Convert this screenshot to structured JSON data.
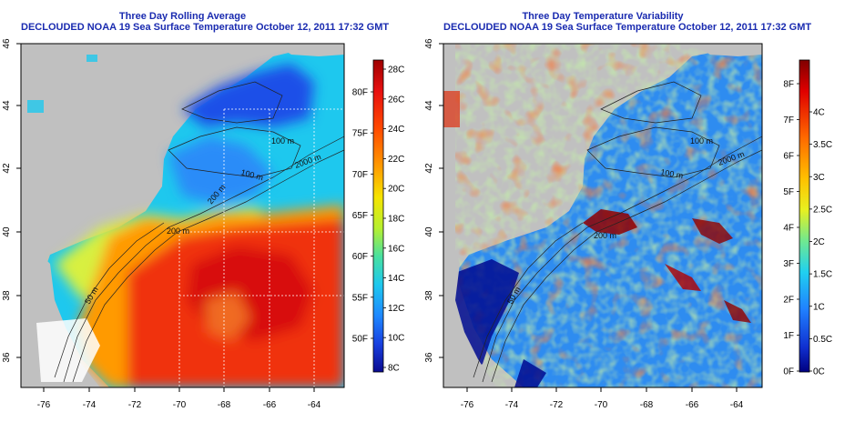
{
  "panels": [
    {
      "title": "Three Day Rolling Average",
      "subtitle": "DECLOUDED NOAA 19 Sea Surface Temperature October 12, 2011 17:32 GMT",
      "lat_labels": [
        "46",
        "44",
        "42",
        "40",
        "38",
        "36"
      ],
      "lon_labels": [
        "-76",
        "-74",
        "-72",
        "-70",
        "-68",
        "-66",
        "-64"
      ],
      "contour_labels": [
        "100 m",
        "2000 m",
        "100 m",
        "200 m",
        "200 m",
        "50 m"
      ],
      "colorbar": {
        "celsius_labels": [
          "28C",
          "26C",
          "24C",
          "22C",
          "20C",
          "18C",
          "16C",
          "14C",
          "12C",
          "10C",
          "8C"
        ],
        "fahrenheit_labels": [
          "80F",
          "75F",
          "70F",
          "65F",
          "60F",
          "55F",
          "50F"
        ],
        "colors": [
          "#9e0000",
          "#e81010",
          "#ff4a00",
          "#ff9a00",
          "#f6e400",
          "#b6f030",
          "#48e0a0",
          "#1ec8ee",
          "#1e88ff",
          "#1840e0",
          "#0a0a90"
        ]
      }
    },
    {
      "title": "Three Day Temperature Variability",
      "subtitle": "DECLOUDED NOAA 19 Sea Surface Temperature October 12, 2011 17:32 GMT",
      "lat_labels": [
        "46",
        "44",
        "42",
        "40",
        "38",
        "36"
      ],
      "lon_labels": [
        "-76",
        "-74",
        "-72",
        "-70",
        "-68",
        "-66",
        "-64"
      ],
      "contour_labels": [
        "100 m",
        "2000 m",
        "100 m",
        "200 m",
        "50 m"
      ],
      "colorbar": {
        "celsius_labels": [
          "4C",
          "3.5C",
          "3C",
          "2.5C",
          "2C",
          "1.5C",
          "1C",
          "0.5C",
          "0C"
        ],
        "fahrenheit_labels": [
          "8F",
          "7F",
          "6F",
          "5F",
          "4F",
          "3F",
          "2F",
          "1F",
          "0F"
        ],
        "colors": [
          "#800000",
          "#e00000",
          "#ff6a00",
          "#ffc000",
          "#e8f020",
          "#70e890",
          "#20d0f0",
          "#2080ff",
          "#1030d0",
          "#000080"
        ]
      }
    }
  ],
  "colors": {
    "title": "#1a2bb0",
    "land": "#c0c0c0",
    "frame": "#000000"
  }
}
